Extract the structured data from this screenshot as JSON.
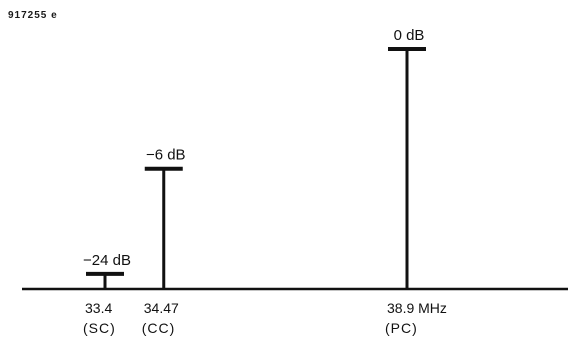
{
  "figure_id": "917255 e",
  "chart_data": {
    "type": "bar",
    "x": [
      33.4,
      34.47,
      38.9
    ],
    "x_unit": "MHz",
    "values_db": [
      -24,
      -6,
      0
    ],
    "level_labels": [
      "−24 dB",
      "−6 dB",
      "0 dB"
    ],
    "tick_labels": [
      "33.4",
      "34.47",
      "38.9 MHz"
    ],
    "carrier_labels": [
      "(SC)",
      "(CC)",
      "(PC)"
    ],
    "ylim": [
      -40,
      0
    ]
  }
}
